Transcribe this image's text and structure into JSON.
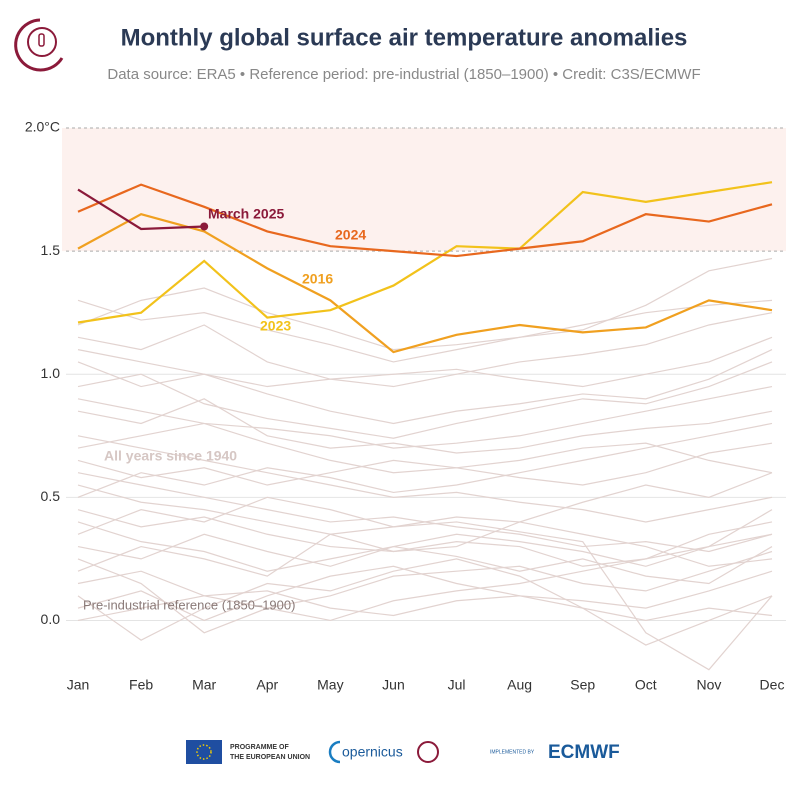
{
  "chart_data": {
    "type": "line",
    "title": "Monthly global surface air temperature anomalies",
    "subtitle": "Data source: ERA5 • Reference period: pre-industrial (1850–1900) • Credit: C3S/ECMWF",
    "categories": [
      "Jan",
      "Feb",
      "Mar",
      "Apr",
      "May",
      "Jun",
      "Jul",
      "Aug",
      "Sep",
      "Oct",
      "Nov",
      "Dec"
    ],
    "ylim": [
      -0.25,
      2.0
    ],
    "yticks": [
      {
        "value": 0,
        "label": "0.0"
      },
      0.5,
      {
        "value": 1,
        "label": "1.0"
      },
      1.5,
      {
        "value": 2,
        "label": "2.0°C"
      }
    ],
    "grid": true,
    "band": [
      1.5,
      2.0
    ],
    "band_color": "#fdf1ee",
    "annotations": [
      "March 2025",
      "2024",
      "2016",
      "2023",
      "All years since 1940",
      "Pre-industrial reference (1850–1900)"
    ],
    "series": [
      {
        "color": "#e2d3d0",
        "values": [
          0.05,
          0.12,
          0.0,
          0.1,
          0.18,
          0.22,
          0.15,
          0.1,
          0.08,
          0.05,
          0.12,
          0.2
        ]
      },
      {
        "color": "#e2d3d0",
        "values": [
          0.3,
          0.25,
          0.35,
          0.28,
          0.22,
          0.3,
          0.26,
          0.2,
          0.25,
          0.18,
          0.15,
          0.3
        ]
      },
      {
        "color": "#e2d3d0",
        "values": [
          0.45,
          0.38,
          0.42,
          0.35,
          0.3,
          0.28,
          0.32,
          0.3,
          0.22,
          0.25,
          0.35,
          0.4
        ]
      },
      {
        "color": "#e2d3d0",
        "values": [
          0.1,
          -0.08,
          0.05,
          0.15,
          0.12,
          0.2,
          0.25,
          0.18,
          0.05,
          -0.1,
          0.0,
          0.1
        ]
      },
      {
        "color": "#e2d3d0",
        "values": [
          0.6,
          0.55,
          0.5,
          0.45,
          0.4,
          0.42,
          0.38,
          0.35,
          0.3,
          0.32,
          0.28,
          0.35
        ]
      },
      {
        "color": "#e2d3d0",
        "values": [
          0.2,
          0.3,
          0.25,
          0.18,
          0.35,
          0.28,
          0.3,
          0.4,
          0.35,
          0.3,
          0.22,
          0.25
        ]
      },
      {
        "color": "#e2d3d0",
        "values": [
          0.75,
          0.7,
          0.65,
          0.6,
          0.55,
          0.5,
          0.52,
          0.48,
          0.45,
          0.4,
          0.45,
          0.5
        ]
      },
      {
        "color": "#e2d3d0",
        "values": [
          0.35,
          0.45,
          0.4,
          0.5,
          0.45,
          0.38,
          0.42,
          0.4,
          0.48,
          0.55,
          0.5,
          0.6
        ]
      },
      {
        "color": "#e2d3d0",
        "values": [
          0.85,
          0.8,
          0.9,
          0.75,
          0.7,
          0.72,
          0.68,
          0.7,
          0.75,
          0.78,
          0.8,
          0.85
        ]
      },
      {
        "color": "#e2d3d0",
        "values": [
          0.95,
          1.0,
          0.88,
          0.82,
          0.78,
          0.74,
          0.8,
          0.85,
          0.9,
          0.88,
          0.95,
          1.05
        ]
      },
      {
        "color": "#e2d3d0",
        "values": [
          1.05,
          0.95,
          1.0,
          0.92,
          0.85,
          0.8,
          0.85,
          0.88,
          0.92,
          0.9,
          0.98,
          1.1
        ]
      },
      {
        "color": "#e2d3d0",
        "values": [
          1.15,
          1.1,
          1.2,
          1.05,
          0.98,
          0.95,
          1.0,
          1.05,
          1.08,
          1.12,
          1.2,
          1.25
        ]
      },
      {
        "color": "#e2d3d0",
        "values": [
          1.3,
          1.22,
          1.25,
          1.18,
          1.12,
          1.05,
          1.1,
          1.15,
          1.2,
          1.25,
          1.28,
          1.3
        ]
      },
      {
        "color": "#e2d3d0",
        "values": [
          1.2,
          1.3,
          1.35,
          1.25,
          1.18,
          1.1,
          1.12,
          1.15,
          1.18,
          1.28,
          1.42,
          1.47
        ]
      },
      {
        "color": "#e2d3d0",
        "values": [
          0.5,
          0.6,
          0.55,
          0.62,
          0.58,
          0.52,
          0.55,
          0.6,
          0.65,
          0.7,
          0.75,
          0.8
        ]
      },
      {
        "color": "#e2d3d0",
        "values": [
          0.65,
          0.58,
          0.62,
          0.55,
          0.6,
          0.65,
          0.62,
          0.58,
          0.55,
          0.6,
          0.68,
          0.72
        ]
      },
      {
        "color": "#e2d3d0",
        "values": [
          0.15,
          0.2,
          0.1,
          0.05,
          0.0,
          0.08,
          0.12,
          0.15,
          0.2,
          0.25,
          0.3,
          0.35
        ]
      },
      {
        "color": "#e2d3d0",
        "values": [
          0.4,
          0.32,
          0.28,
          0.2,
          0.25,
          0.3,
          0.35,
          0.32,
          0.28,
          0.22,
          0.3,
          0.45
        ]
      },
      {
        "color": "#e2d3d0",
        "values": [
          0.25,
          0.15,
          -0.05,
          0.05,
          0.1,
          0.18,
          0.2,
          0.22,
          0.15,
          0.12,
          0.2,
          0.28
        ]
      },
      {
        "color": "#e2d3d0",
        "values": [
          0.55,
          0.48,
          0.45,
          0.4,
          0.35,
          0.38,
          0.4,
          0.36,
          0.32,
          -0.05,
          -0.2,
          0.1
        ]
      },
      {
        "color": "#e2d3d0",
        "values": [
          0.9,
          0.85,
          0.8,
          0.78,
          0.75,
          0.7,
          0.72,
          0.75,
          0.8,
          0.85,
          0.9,
          0.95
        ]
      },
      {
        "color": "#e2d3d0",
        "values": [
          1.1,
          1.05,
          1.0,
          0.95,
          0.98,
          1.0,
          1.02,
          0.98,
          0.95,
          1.0,
          1.05,
          1.15
        ]
      },
      {
        "color": "#e2d3d0",
        "values": [
          0.7,
          0.75,
          0.8,
          0.72,
          0.65,
          0.6,
          0.62,
          0.65,
          0.7,
          0.72,
          0.65,
          0.6
        ]
      },
      {
        "color": "#e2d3d0",
        "values": [
          0.0,
          0.05,
          0.1,
          0.12,
          0.05,
          0.02,
          0.08,
          0.1,
          0.05,
          0.0,
          0.05,
          0.02
        ]
      },
      {
        "color": "#f0a020",
        "values": [
          1.51,
          1.65,
          1.58,
          1.43,
          1.3,
          1.09,
          1.16,
          1.2,
          1.17,
          1.19,
          1.3,
          1.26
        ]
      },
      {
        "color": "#f2c21b",
        "values": [
          1.21,
          1.25,
          1.46,
          1.23,
          1.26,
          1.36,
          1.52,
          1.51,
          1.74,
          1.7,
          1.74,
          1.78
        ]
      },
      {
        "color": "#e8681e",
        "values": [
          1.66,
          1.77,
          1.68,
          1.58,
          1.52,
          1.5,
          1.48,
          1.51,
          1.54,
          1.65,
          1.62,
          1.69
        ]
      },
      {
        "color": "#8b1a3a",
        "values": [
          1.75,
          1.59,
          1.6,
          null,
          null,
          null,
          null,
          null,
          null,
          null,
          null,
          null
        ]
      }
    ]
  },
  "footer": [
    "PROGRAMME OF",
    "THE EUROPEAN UNION",
    "opernicus",
    "IMPLEMENTED BY",
    "ECMWF"
  ]
}
